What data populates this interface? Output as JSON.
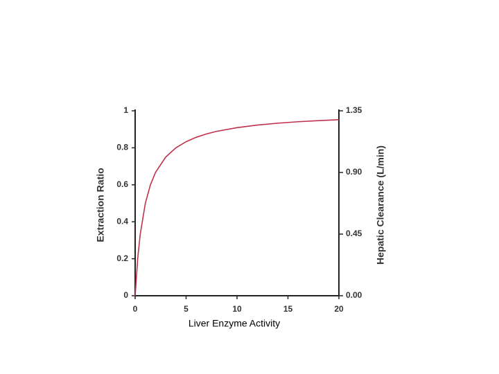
{
  "chart_data": {
    "type": "line",
    "xlabel": "Liver Enzyme Activity",
    "ylabel": "Extraction Ratio",
    "y2label": "Hepatic Clearance (L/min)",
    "xlim": [
      0,
      20
    ],
    "xticks": [
      0,
      5,
      10,
      15,
      20
    ],
    "ylim": [
      0,
      1
    ],
    "yticks": [
      0,
      0.2,
      0.4,
      0.6,
      0.8,
      1
    ],
    "y2lim": [
      0,
      1.35
    ],
    "y2ticks": [
      {
        "value": 0,
        "label": "0.00"
      },
      0.45,
      {
        "value": 0.9,
        "label": "0.90"
      },
      1.35
    ],
    "grid": false,
    "x": [
      0,
      0.25,
      0.5,
      1,
      1.5,
      2,
      3,
      4,
      5,
      6,
      7,
      8,
      10,
      12,
      14,
      16,
      18,
      20
    ],
    "series": [
      {
        "color": "#c0304a",
        "values": [
          0,
          0.2,
          0.333,
          0.5,
          0.6,
          0.667,
          0.75,
          0.8,
          0.833,
          0.857,
          0.875,
          0.889,
          0.909,
          0.923,
          0.933,
          0.941,
          0.947,
          0.952
        ]
      }
    ]
  }
}
